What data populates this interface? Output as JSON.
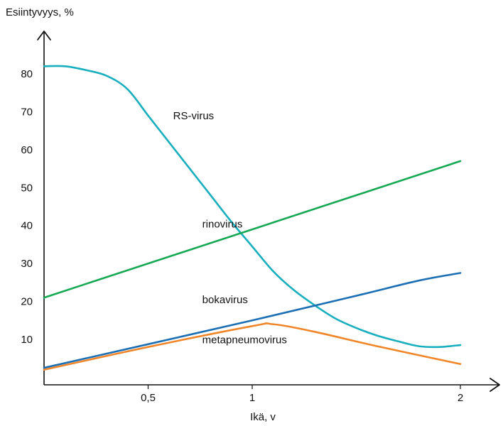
{
  "chart_data": {
    "type": "line",
    "title": "",
    "ylabel": "Esiintyvyys, %",
    "xlabel": "Ikä, v",
    "xlim": [
      0,
      2
    ],
    "ylim": [
      0,
      100
    ],
    "x_ticks": [
      {
        "value": 0.5,
        "label": "0,5"
      },
      {
        "value": 1,
        "label": "1"
      },
      {
        "value": 2,
        "label": "2"
      }
    ],
    "y_ticks": [
      {
        "value": 10,
        "label": "10"
      },
      {
        "value": 20,
        "label": "20"
      },
      {
        "value": 30,
        "label": "30"
      },
      {
        "value": 40,
        "label": "40"
      },
      {
        "value": 50,
        "label": "50"
      },
      {
        "value": 60,
        "label": "60"
      },
      {
        "value": 70,
        "label": "70"
      },
      {
        "value": 80,
        "label": "80"
      }
    ],
    "grid": false,
    "legend": "none (labels next to lines)",
    "series": [
      {
        "name": "RS-virus",
        "color": "#1aafbe",
        "label_at": [
          0.62,
          68
        ],
        "points": [
          [
            0,
            82
          ],
          [
            0.1,
            82
          ],
          [
            0.2,
            81
          ],
          [
            0.3,
            79.5
          ],
          [
            0.4,
            76
          ],
          [
            0.5,
            69
          ],
          [
            0.6,
            62
          ],
          [
            0.7,
            55
          ],
          [
            0.8,
            48
          ],
          [
            0.9,
            41
          ],
          [
            1.0,
            34.5
          ],
          [
            1.1,
            28
          ],
          [
            1.2,
            23
          ],
          [
            1.3,
            19
          ],
          [
            1.4,
            15.5
          ],
          [
            1.5,
            13
          ],
          [
            1.6,
            11
          ],
          [
            1.7,
            9.5
          ],
          [
            1.8,
            8.2
          ],
          [
            1.9,
            8
          ],
          [
            2.0,
            8.5
          ]
        ]
      },
      {
        "name": "rinovirus",
        "color": "#17a853",
        "label_at": [
          0.76,
          39.5
        ],
        "points": [
          [
            0,
            21
          ],
          [
            2.0,
            57
          ]
        ]
      },
      {
        "name": "bokavirus",
        "color": "#1d6fb4",
        "label_at": [
          0.76,
          19.5
        ],
        "points": [
          [
            0,
            2.5
          ],
          [
            1.0,
            15
          ],
          [
            1.5,
            21.5
          ],
          [
            1.8,
            25.5
          ],
          [
            2.0,
            27.5
          ]
        ]
      },
      {
        "name": "metapneumovirus",
        "color": "#f0862a",
        "label_at": [
          0.76,
          9
        ],
        "points": [
          [
            0,
            2
          ],
          [
            0.5,
            8
          ],
          [
            1.0,
            13.5
          ],
          [
            1.1,
            14
          ],
          [
            1.3,
            12
          ],
          [
            1.6,
            8.2
          ],
          [
            2.0,
            3.5
          ]
        ]
      }
    ]
  }
}
